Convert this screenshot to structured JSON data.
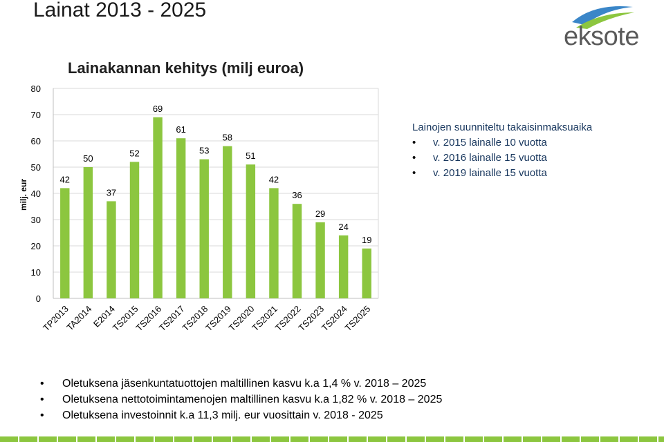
{
  "page": {
    "title": "Lainat 2013 - 2025"
  },
  "logo": {
    "text": "eksote",
    "swoosh_color": "#8cc63f",
    "swoosh_color_2": "#3a86c8"
  },
  "colors": {
    "bar": "#8cc63f",
    "text": "#000000",
    "note_text": "#17365d",
    "footer": "#8cc63f"
  },
  "notes": {
    "heading": "Lainojen suunniteltu takaisinmaksuaika",
    "items": [
      "v. 2015 lainalle 10 vuotta",
      "v. 2016 lainalle 15 vuotta",
      "v. 2019 lainalle 15 vuotta"
    ]
  },
  "facts": [
    "Oletuksena jäsenkuntatuottojen maltillinen kasvu k.a 1,4 % v. 2018 – 2025",
    "Oletuksena nettotoimintamenojen maltillinen kasvu k.a 1,82 % v. 2018 – 2025",
    "Oletuksena investoinnit k.a 11,3 milj. eur vuosittain v. 2018 - 2025"
  ],
  "chart_data": {
    "type": "bar",
    "title": "Lainakannan kehitys (milj euroa)",
    "ylabel": "milj. eur",
    "xlabel": "",
    "categories": [
      "TP2013",
      "TA2014",
      "E2014",
      "TS2015",
      "TS2016",
      "TS2017",
      "TS2018",
      "TS2019",
      "TS2020",
      "TS2021",
      "TS2022",
      "TS2023",
      "TS2024",
      "TS2025"
    ],
    "values": [
      42,
      50,
      37,
      52,
      69,
      61,
      53,
      58,
      51,
      42,
      36,
      29,
      24,
      19
    ],
    "ylim": [
      0,
      80
    ],
    "yticks": [
      0,
      10,
      20,
      30,
      40,
      50,
      60,
      70,
      80
    ],
    "grid": true,
    "data_labels": true
  }
}
